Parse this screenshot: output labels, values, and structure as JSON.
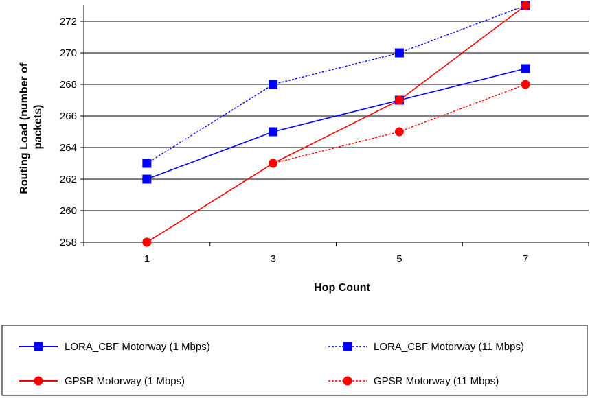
{
  "chart_data": {
    "type": "line",
    "title": "",
    "xlabel": "Hop Count",
    "ylabel": "Routing Load (number of packets)",
    "ylabel_lines": [
      "Routing Load (number of",
      "packets)"
    ],
    "x": [
      "1",
      "3",
      "5",
      "7"
    ],
    "ylim": [
      258,
      273
    ],
    "yticks": [
      258,
      260,
      262,
      264,
      266,
      268,
      270,
      272
    ],
    "grid": "horizontal",
    "legend_position": "bottom",
    "series": [
      {
        "name": "LORA_CBF Motorway (1 Mbps)",
        "values": [
          262,
          265,
          267,
          269
        ],
        "color": "#0000ff",
        "marker": "square",
        "dash": "solid"
      },
      {
        "name": "LORA_CBF Motorway (11 Mbps)",
        "values": [
          263,
          268,
          270,
          273
        ],
        "color": "#0000ff",
        "marker": "square",
        "dash": "dashed"
      },
      {
        "name": "GPSR Motorway (1 Mbps)",
        "values": [
          258,
          263,
          267,
          273
        ],
        "color": "#ff0000",
        "marker": "circle",
        "dash": "solid"
      },
      {
        "name": "GPSR Motorway (11 Mbps)",
        "values": [
          258,
          263,
          265,
          268
        ],
        "color": "#ff0000",
        "marker": "circle",
        "dash": "dashed"
      }
    ]
  }
}
